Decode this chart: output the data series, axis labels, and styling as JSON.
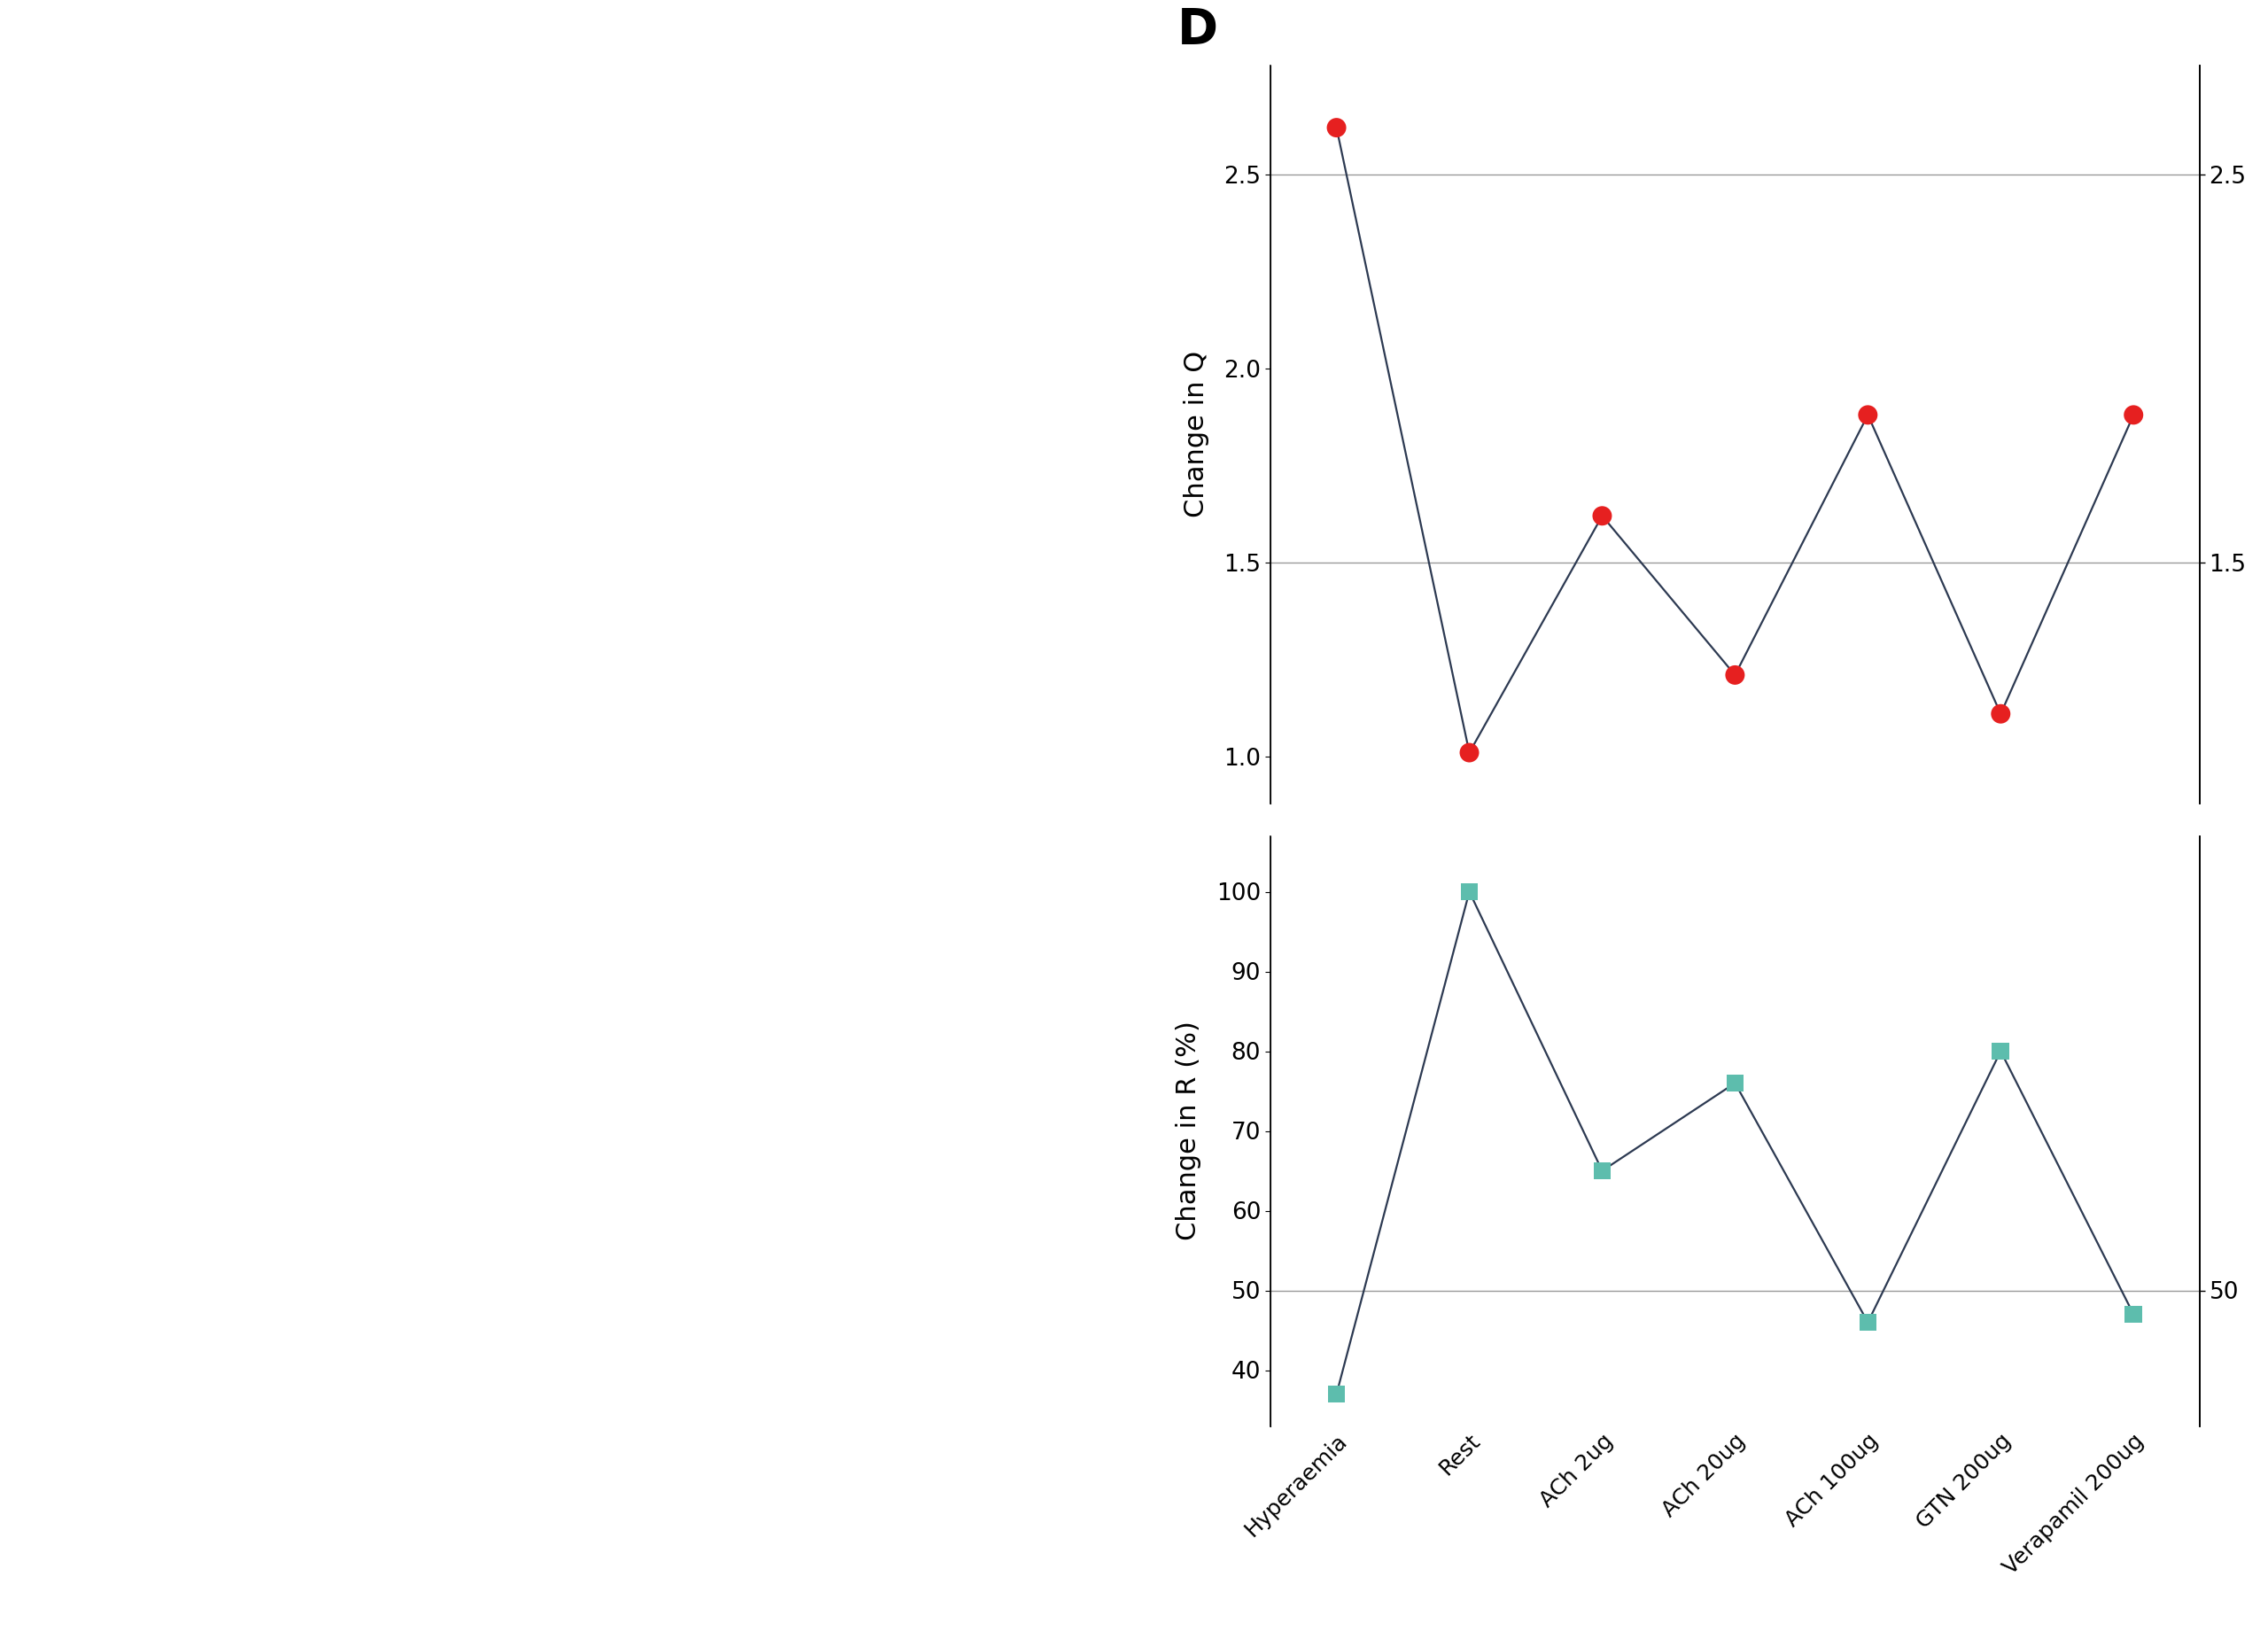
{
  "categories": [
    "Hyperaemia",
    "Rest",
    "ACh 2ug",
    "ACh 20ug",
    "ACh 100ug",
    "GTN 200ug",
    "Verapamil 200ug"
  ],
  "Q_values": [
    2.62,
    1.01,
    1.62,
    1.21,
    1.88,
    1.11,
    1.88
  ],
  "R_values": [
    37,
    100,
    65,
    76,
    46,
    80,
    47
  ],
  "Q_ylim": [
    0.88,
    2.78
  ],
  "R_ylim": [
    33,
    107
  ],
  "Q_yticks": [
    1.0,
    1.5,
    2.0,
    2.5
  ],
  "R_yticks": [
    40,
    50,
    60,
    70,
    80,
    90,
    100
  ],
  "Q_hlines": [
    1.5,
    2.5
  ],
  "R_hlines": [
    50
  ],
  "Q_ylabel": "Change in Q",
  "R_ylabel": "Change in R (%)",
  "panel_D_label": "D",
  "Q_dot_color": "#e62020",
  "R_dot_color": "#5dbdad",
  "line_color": "#2d3a52",
  "background_color": "#ffffff",
  "image_background": "#111111",
  "label_fontsize": 22,
  "tick_fontsize": 19,
  "xticklabel_fontsize": 18,
  "panel_label_fontsize": 40,
  "hline_color": "#999999",
  "right_ytick_Q": [
    1.5,
    2.5
  ],
  "right_ytick_R": [
    50
  ],
  "Q_dot_size": 250,
  "R_dot_size": 200,
  "line_width": 1.6
}
